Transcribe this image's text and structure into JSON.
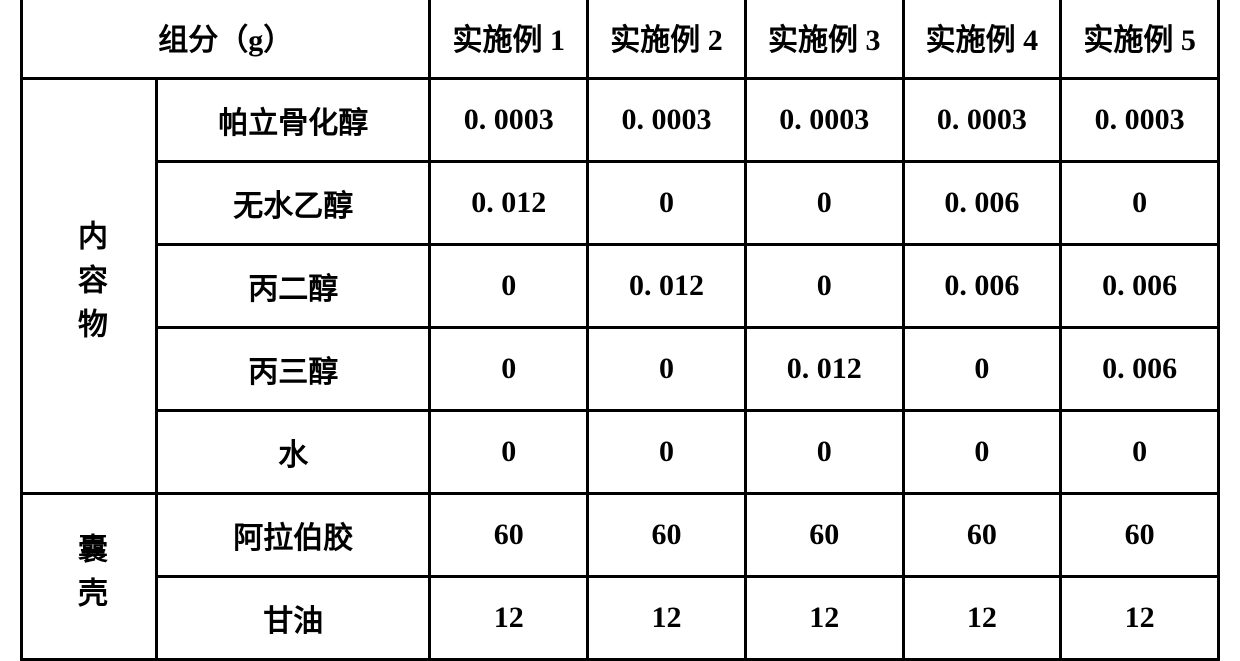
{
  "table": {
    "header_label": "组分（g）",
    "columns": [
      "实施例 1",
      "实施例 2",
      "实施例 3",
      "实施例 4",
      "实施例 5"
    ],
    "groups": [
      {
        "label": "内容物",
        "rows": [
          {
            "label": "帕立骨化醇",
            "values": [
              "0. 0003",
              "0. 0003",
              "0. 0003",
              "0. 0003",
              "0. 0003"
            ]
          },
          {
            "label": "无水乙醇",
            "values": [
              "0. 012",
              "0",
              "0",
              "0. 006",
              "0"
            ]
          },
          {
            "label": "丙二醇",
            "values": [
              "0",
              "0. 012",
              "0",
              "0. 006",
              "0. 006"
            ]
          },
          {
            "label": "丙三醇",
            "values": [
              "0",
              "0",
              "0. 012",
              "0",
              "0. 006"
            ]
          },
          {
            "label": "水",
            "values": [
              "0",
              "0",
              "0",
              "0",
              "0"
            ]
          }
        ]
      },
      {
        "label": "囊壳",
        "rows": [
          {
            "label": "阿拉伯胶",
            "values": [
              "60",
              "60",
              "60",
              "60",
              "60"
            ]
          },
          {
            "label": "甘油",
            "values": [
              "12",
              "12",
              "12",
              "12",
              "12"
            ]
          }
        ]
      }
    ],
    "border_color": "#000000",
    "background_color": "#ffffff",
    "text_color": "#000000",
    "font_size": 30,
    "font_weight": "bold"
  }
}
